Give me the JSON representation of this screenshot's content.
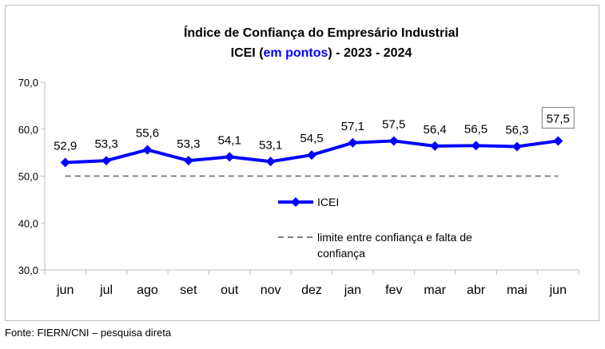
{
  "chart_data": {
    "type": "line",
    "title_line1": "Índice de Confiança do Empresário Industrial",
    "title_line2_prefix": "ICEI (",
    "title_line2_highlight": "em pontos",
    "title_line2_suffix": ") - 2023 - 2024",
    "categories": [
      "jun",
      "jul",
      "ago",
      "set",
      "out",
      "nov",
      "dez",
      "jan",
      "fev",
      "mar",
      "abr",
      "mai",
      "jun"
    ],
    "series": [
      {
        "name": "ICEI",
        "values": [
          52.9,
          53.3,
          55.6,
          53.3,
          54.1,
          53.1,
          54.5,
          57.1,
          57.5,
          56.4,
          56.5,
          56.3,
          57.5
        ],
        "labels": [
          "52,9",
          "53,3",
          "55,6",
          "53,3",
          "54,1",
          "53,1",
          "54,5",
          "57,1",
          "57,5",
          "56,4",
          "56,5",
          "56,3",
          "57,5"
        ]
      }
    ],
    "reference_line": {
      "name": "limite entre confiança e falta de confiança",
      "value": 50
    },
    "legend_line_ref_1": "limite entre confiança e falta de",
    "legend_line_ref_2": "confiança",
    "y_ticks": [
      "70,0",
      "60,0",
      "50,0",
      "40,0",
      "30,0"
    ],
    "y_tick_values": [
      70,
      60,
      50,
      40,
      30
    ],
    "ylim": [
      30,
      70
    ],
    "grid": false,
    "legend_position": "center-right",
    "colors": {
      "series": "#0000ff",
      "highlight_text": "#0000ff",
      "reference": "#808080",
      "axis": "#bfbfbf"
    }
  },
  "source_note": "Fonte: FIERN/CNI – pesquisa direta"
}
